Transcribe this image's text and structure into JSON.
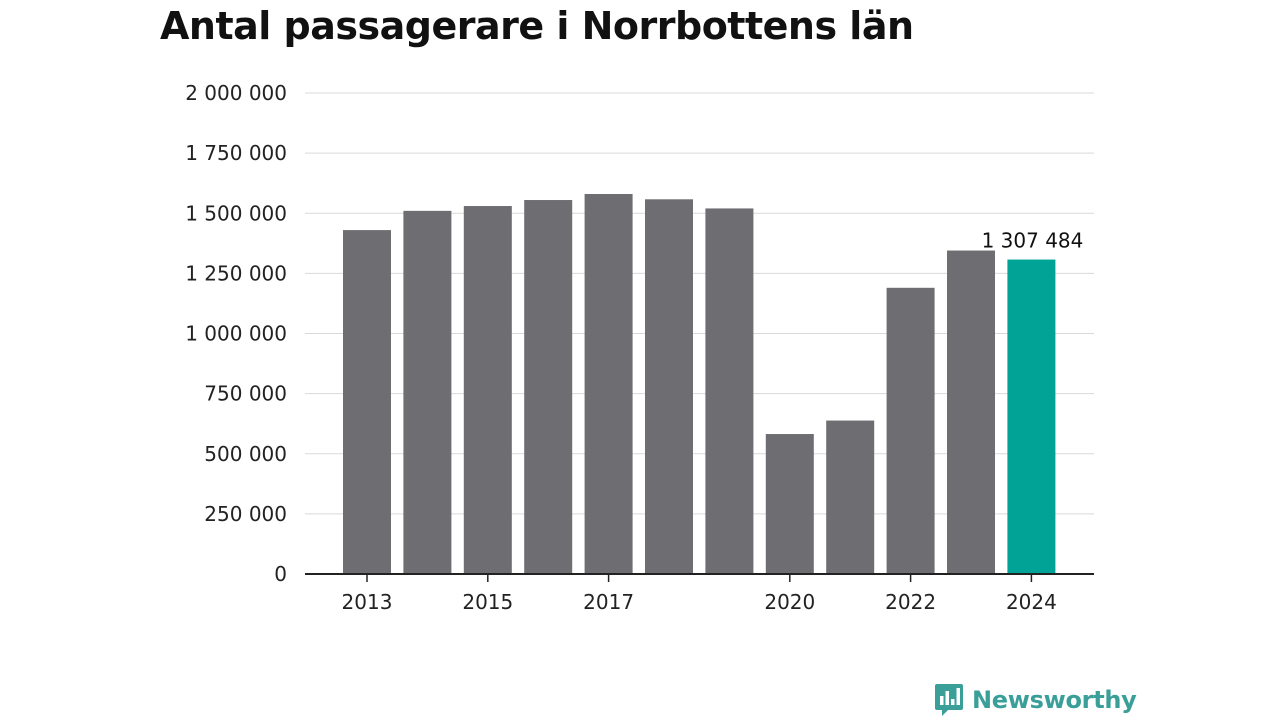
{
  "chart_data": {
    "type": "bar",
    "title": "Antal passagerare i Norrbottens län",
    "xlabel": "",
    "ylabel": "",
    "categories": [
      "2013",
      "2014",
      "2015",
      "2016",
      "2017",
      "2018",
      "2019",
      "2020",
      "2021",
      "2022",
      "2023",
      "2024"
    ],
    "x_tick_labels": [
      "2013",
      "",
      "2015",
      "",
      "2017",
      "",
      "",
      "2020",
      "",
      "2022",
      "",
      "2024"
    ],
    "values": [
      1430000,
      1510000,
      1530000,
      1555000,
      1580000,
      1558000,
      1520000,
      582000,
      638000,
      1190000,
      1345000,
      1307484
    ],
    "ylim": [
      0,
      2000000
    ],
    "y_ticks": [
      0,
      250000,
      500000,
      750000,
      1000000,
      1250000,
      1500000,
      1750000,
      2000000
    ],
    "y_tick_labels": [
      "0",
      "250 000",
      "500 000",
      "750 000",
      "1 000 000",
      "1 250 000",
      "1 500 000",
      "1 750 000",
      "2 000 000"
    ],
    "highlight_index": 11,
    "highlight_label": "1 307 484",
    "bar_color": "#6d6d72",
    "highlight_color": "#00a396",
    "grid": true,
    "legend": "none"
  },
  "brand": {
    "name": "Newsworthy",
    "icon": "newsworthy-logo-icon",
    "color": "#3a9f99"
  }
}
